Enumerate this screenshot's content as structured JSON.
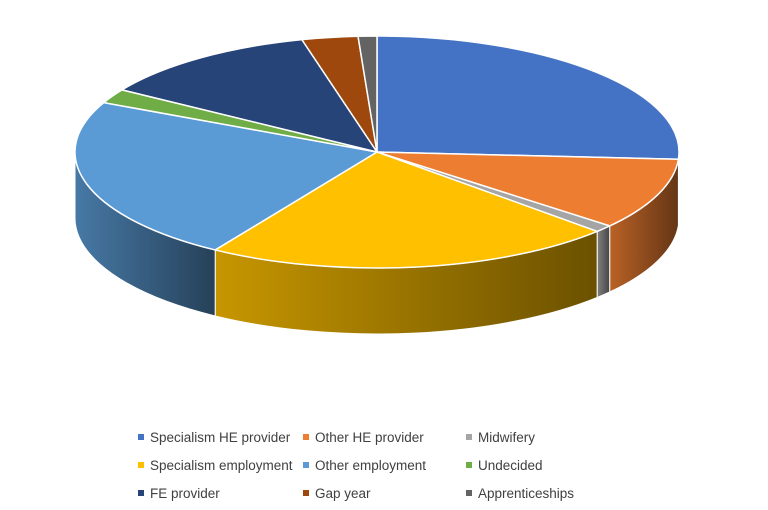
{
  "chart_data": {
    "type": "pie",
    "style": "3d",
    "title": "",
    "legend_position": "bottom",
    "slices": [
      {
        "label": "Specialism HE provider",
        "value": 26,
        "color": "#4472C4"
      },
      {
        "label": "Other HE provider",
        "value": 10,
        "color": "#ED7D31"
      },
      {
        "label": "Midwifery",
        "value": 1,
        "color": "#A5A5A5"
      },
      {
        "label": "Specialism employment",
        "value": 22,
        "color": "#FFC000"
      },
      {
        "label": "Other employment",
        "value": 23,
        "color": "#5B9BD5"
      },
      {
        "label": "Undecided",
        "value": 2,
        "color": "#70AD47"
      },
      {
        "label": "FE provider",
        "value": 12,
        "color": "#264478"
      },
      {
        "label": "Gap year",
        "value": 3,
        "color": "#9E480E"
      },
      {
        "label": "Apprenticeships",
        "value": 1,
        "color": "#636363"
      }
    ]
  }
}
